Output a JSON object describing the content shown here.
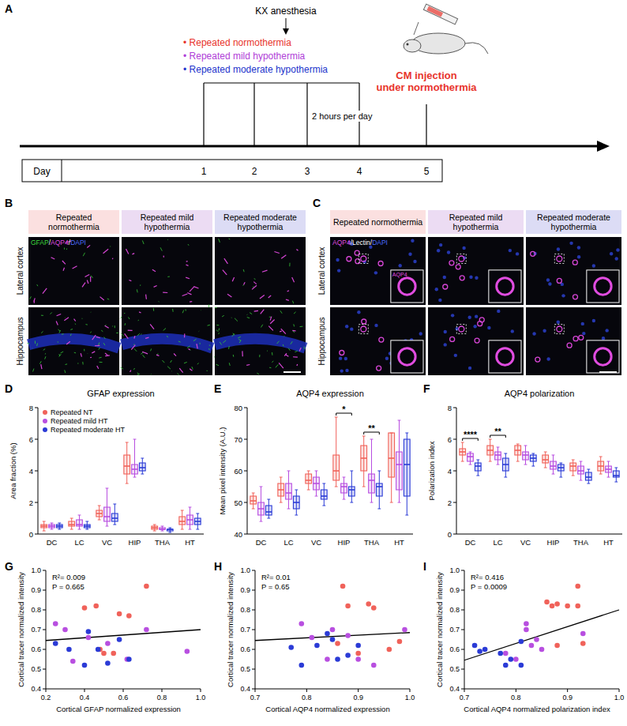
{
  "panel_letters": [
    "A",
    "B",
    "C",
    "D",
    "E",
    "F",
    "G",
    "H",
    "I"
  ],
  "timeline": {
    "event": "KX anesthesia",
    "conditions": [
      {
        "text": "• Repeated normothermia",
        "color": "#e8342c"
      },
      {
        "text": "• Repeated mild hypothermia",
        "color": "#b040d8"
      },
      {
        "text": "• Repeated moderate hypothermia",
        "color": "#2233cc"
      }
    ],
    "duration": "2 hours per day",
    "injection": [
      "CM injection",
      "under normothermia"
    ],
    "injection_color": "#e8342c",
    "day_label": "Day",
    "days": [
      "1",
      "2",
      "3",
      "4",
      "5"
    ]
  },
  "images_b": {
    "columns": [
      {
        "text": "Repeated normothermia",
        "bg": "#fbe0e0"
      },
      {
        "text": "Repeated mild hypothermia",
        "bg": "#ecdcf3"
      },
      {
        "text": "Repeated moderate hypothermia",
        "bg": "#dcdcf5"
      }
    ],
    "rows": [
      "Lateral cortex",
      "Hippocampus"
    ],
    "separator": "/",
    "channels": [
      {
        "text": "GFAP",
        "color": "#3ddc3d"
      },
      {
        "text": "AQP4",
        "color": "#e04ce0"
      },
      {
        "text": "DAPI",
        "color": "#4a6cff"
      }
    ]
  },
  "images_c": {
    "columns": [
      {
        "text": "Repeated normothermia",
        "bg": "#fbe0e0"
      },
      {
        "text": "Repeated mild hypothermia",
        "bg": "#ecdcf3"
      },
      {
        "text": "Repeated moderate hypothermia",
        "bg": "#dcdcf5"
      }
    ],
    "rows": [
      "Lateral cortex",
      "Hippocampus"
    ],
    "separator": "/",
    "channels": [
      {
        "text": "AQP4",
        "color": "#e04ce0"
      },
      {
        "text": "Lectin",
        "color": "#ffffff"
      },
      {
        "text": "DAPI",
        "color": "#4a6cff"
      }
    ],
    "inset_label": {
      "text": "AQP4",
      "color": "#e04ce0"
    }
  },
  "chart_data": [
    {
      "type": "box",
      "title": "GFAP expression",
      "y_label": "Area fraction (%)",
      "categories": [
        "DC",
        "LC",
        "VC",
        "HIP",
        "THA",
        "HT"
      ],
      "ylim": [
        0,
        8
      ],
      "yticks": [
        0,
        2,
        4,
        6,
        8
      ],
      "legend": "top-left",
      "series": [
        {
          "name": "Repeated NT",
          "color": "#f0625a",
          "min": [
            0.2,
            0.3,
            0.9,
            3.2,
            0.2,
            0.3
          ],
          "q1": [
            0.4,
            0.5,
            1.1,
            3.8,
            0.3,
            0.6
          ],
          "median": [
            0.5,
            0.6,
            1.3,
            4.3,
            0.4,
            0.8
          ],
          "q3": [
            0.6,
            0.8,
            1.5,
            5.0,
            0.5,
            1.1
          ],
          "max": [
            0.8,
            1.0,
            1.8,
            5.8,
            0.6,
            1.5
          ]
        },
        {
          "name": "Repeated mild HT",
          "color": "#b84fe0",
          "min": [
            0.3,
            0.3,
            0.5,
            3.6,
            0.2,
            0.3
          ],
          "q1": [
            0.4,
            0.5,
            0.8,
            3.8,
            0.3,
            0.6
          ],
          "median": [
            0.5,
            0.6,
            1.1,
            4.1,
            0.3,
            0.9
          ],
          "q3": [
            0.6,
            0.9,
            1.7,
            4.4,
            0.4,
            1.2
          ],
          "max": [
            0.7,
            1.2,
            2.9,
            6.0,
            0.5,
            1.7
          ]
        },
        {
          "name": "Repeated moderate HT",
          "color": "#2b3bd6",
          "min": [
            0.3,
            0.3,
            0.6,
            3.8,
            0.1,
            0.3
          ],
          "q1": [
            0.4,
            0.4,
            0.8,
            4.0,
            0.2,
            0.6
          ],
          "median": [
            0.5,
            0.5,
            1.0,
            4.2,
            0.3,
            0.8
          ],
          "q3": [
            0.6,
            0.6,
            1.3,
            4.5,
            0.3,
            1.0
          ],
          "max": [
            0.7,
            0.8,
            1.9,
            4.8,
            0.4,
            1.3
          ]
        }
      ]
    },
    {
      "type": "box",
      "title": "AQP4 expression",
      "y_label": "Mean pixel intensity (A.U.)",
      "categories": [
        "DC",
        "LC",
        "VC",
        "HIP",
        "THA",
        "HT"
      ],
      "ylim": [
        40,
        80
      ],
      "yticks": [
        40,
        50,
        60,
        70,
        80
      ],
      "significance": [
        {
          "index": 3,
          "text": "*"
        },
        {
          "index": 4,
          "text": "**"
        }
      ],
      "series": [
        {
          "color": "#f0625a",
          "min": [
            48,
            50,
            54,
            55,
            55,
            50
          ],
          "q1": [
            49.5,
            52,
            56,
            57,
            60,
            58
          ],
          "median": [
            50.5,
            54,
            57,
            60,
            64,
            64
          ],
          "q3": [
            52,
            56,
            59,
            65,
            68,
            72
          ],
          "max": [
            53,
            58,
            60,
            77,
            71,
            72
          ]
        },
        {
          "color": "#b84fe0",
          "min": [
            44,
            48,
            52,
            51,
            50,
            50
          ],
          "q1": [
            46,
            51,
            54,
            53,
            53,
            54
          ],
          "median": [
            48,
            53,
            56,
            55,
            57,
            62
          ],
          "q3": [
            50,
            56,
            58,
            56,
            59,
            66
          ],
          "max": [
            55,
            60,
            60,
            58,
            70,
            76
          ]
        },
        {
          "color": "#2b3bd6",
          "min": [
            45,
            46,
            49,
            50,
            48,
            46
          ],
          "q1": [
            46,
            48,
            51,
            52,
            52,
            52
          ],
          "median": [
            47,
            50,
            52,
            54,
            55,
            62
          ],
          "q3": [
            49,
            52,
            54,
            55,
            56,
            70
          ],
          "max": [
            51,
            54,
            56,
            60,
            60,
            72
          ]
        }
      ]
    },
    {
      "type": "box",
      "title": "AQP4 polarization",
      "y_label": "Polarization index",
      "categories": [
        "DC",
        "LC",
        "VC",
        "HIP",
        "THA",
        "HT"
      ],
      "ylim": [
        0,
        8
      ],
      "yticks": [
        0,
        2,
        4,
        6,
        8
      ],
      "significance": [
        {
          "index": 0,
          "text": "****"
        },
        {
          "index": 1,
          "text": "**"
        }
      ],
      "series": [
        {
          "color": "#f0625a",
          "min": [
            4.6,
            4.6,
            4.6,
            4.2,
            3.7,
            3.8
          ],
          "q1": [
            5.0,
            5.0,
            5.0,
            4.5,
            4.0,
            4.0
          ],
          "median": [
            5.2,
            5.3,
            5.3,
            4.7,
            4.3,
            4.3
          ],
          "q3": [
            5.4,
            5.6,
            5.6,
            5.0,
            4.5,
            4.6
          ],
          "max": [
            5.8,
            6.0,
            5.7,
            5.2,
            4.7,
            4.9
          ]
        },
        {
          "color": "#b84fe0",
          "min": [
            4.4,
            4.4,
            4.4,
            3.8,
            3.4,
            3.6
          ],
          "q1": [
            4.6,
            4.7,
            4.7,
            4.1,
            3.8,
            3.9
          ],
          "median": [
            4.9,
            5.0,
            5.0,
            4.3,
            4.0,
            4.1
          ],
          "q3": [
            5.1,
            5.2,
            5.2,
            4.6,
            4.3,
            4.3
          ],
          "max": [
            5.2,
            5.5,
            5.6,
            5.0,
            4.6,
            4.6
          ]
        },
        {
          "color": "#2b3bd6",
          "min": [
            3.7,
            3.6,
            4.3,
            3.6,
            3.2,
            3.3
          ],
          "q1": [
            4.0,
            4.0,
            4.6,
            4.0,
            3.4,
            3.6
          ],
          "median": [
            4.3,
            4.4,
            4.8,
            4.2,
            3.6,
            3.7
          ],
          "q3": [
            4.5,
            4.8,
            5.0,
            4.4,
            3.9,
            4.0
          ],
          "max": [
            4.7,
            5.1,
            5.1,
            4.5,
            4.1,
            4.2
          ]
        }
      ]
    },
    {
      "type": "scatter",
      "x_label": "Cortical GFAP normalized expression",
      "y_label": "Cortical tracer normalized intensity",
      "xlim": [
        0.2,
        1.0
      ],
      "xticks": [
        0.2,
        0.4,
        0.6,
        0.8,
        {
          "value": 1.0,
          "label": "1.0"
        }
      ],
      "ylim": [
        0.4,
        1.0
      ],
      "yticks": [
        0.4,
        0.5,
        0.6,
        0.7,
        0.8,
        0.9,
        {
          "value": 1.0,
          "label": "1.0"
        }
      ],
      "annotations": [
        "R²= 0.009",
        "P = 0.665"
      ],
      "trend": {
        "x": [
          0.2,
          1.0
        ],
        "y": [
          0.645,
          0.7
        ]
      },
      "series": [
        {
          "color": "#f0625a",
          "x": [
            0.4,
            0.46,
            0.55,
            0.58,
            0.63,
            0.72,
            0.5,
            0.48
          ],
          "y": [
            0.81,
            0.82,
            0.58,
            0.78,
            0.77,
            0.92,
            0.58,
            0.6
          ]
        },
        {
          "color": "#b84fe0",
          "x": [
            0.25,
            0.3,
            0.34,
            0.42,
            0.52,
            0.72,
            0.93,
            0.62
          ],
          "y": [
            0.73,
            0.7,
            0.54,
            0.66,
            0.63,
            0.7,
            0.59,
            0.55
          ]
        },
        {
          "color": "#2b3bd6",
          "x": [
            0.25,
            0.32,
            0.4,
            0.42,
            0.52,
            0.58,
            0.63,
            0.47
          ],
          "y": [
            0.63,
            0.6,
            0.52,
            0.69,
            0.53,
            0.65,
            0.55,
            0.6
          ]
        }
      ]
    },
    {
      "type": "scatter",
      "x_label": "Cortical AQP4 normalized expression",
      "y_label": "Cortical tracer normalized intensity",
      "xlim": [
        0.7,
        1.0
      ],
      "xticks": [
        0.7,
        0.8,
        0.9,
        {
          "value": 1.0,
          "label": "1.0"
        }
      ],
      "ylim": [
        0.4,
        1.0
      ],
      "yticks": [
        0.4,
        0.5,
        0.6,
        0.7,
        0.8,
        0.9,
        {
          "value": 1.0,
          "label": "1.0"
        }
      ],
      "annotations": [
        "R²= 0.01",
        "P = 0.65"
      ],
      "trend": {
        "x": [
          0.7,
          1.0
        ],
        "y": [
          0.645,
          0.685
        ]
      },
      "series": [
        {
          "color": "#f0625a",
          "x": [
            0.87,
            0.88,
            0.92,
            0.93,
            0.9,
            0.86,
            0.98,
            0.96
          ],
          "y": [
            0.92,
            0.82,
            0.83,
            0.81,
            0.58,
            0.63,
            0.64,
            0.6
          ]
        },
        {
          "color": "#b84fe0",
          "x": [
            0.79,
            0.81,
            0.84,
            0.85,
            0.88,
            0.9,
            0.93,
            0.99
          ],
          "y": [
            0.73,
            0.66,
            0.55,
            0.7,
            0.67,
            0.55,
            0.52,
            0.7
          ]
        },
        {
          "color": "#2b3bd6",
          "x": [
            0.77,
            0.79,
            0.82,
            0.84,
            0.86,
            0.9,
            0.88,
            0.85
          ],
          "y": [
            0.61,
            0.52,
            0.62,
            0.68,
            0.55,
            0.62,
            0.57,
            0.65
          ]
        }
      ]
    },
    {
      "type": "scatter",
      "x_label": "Cortical AQP4 normalized polarization index",
      "y_label": "Cortical tracer normalized intensity",
      "xlim": [
        0.7,
        1.0
      ],
      "xticks": [
        0.7,
        0.8,
        0.9,
        {
          "value": 1.0,
          "label": "1.0"
        }
      ],
      "ylim": [
        0.4,
        1.0
      ],
      "yticks": [
        0.4,
        0.5,
        0.6,
        0.7,
        0.8,
        0.9,
        {
          "value": 1.0,
          "label": "1.0"
        }
      ],
      "annotations": [
        "R²= 0.416",
        "P = 0.0009"
      ],
      "trend": {
        "x": [
          0.7,
          1.0
        ],
        "y": [
          0.545,
          0.8
        ]
      },
      "series": [
        {
          "color": "#f0625a",
          "x": [
            0.86,
            0.87,
            0.88,
            0.9,
            0.92,
            0.92,
            0.93,
            0.88
          ],
          "y": [
            0.84,
            0.82,
            0.83,
            0.82,
            0.92,
            0.82,
            0.63,
            0.62
          ]
        },
        {
          "color": "#b84fe0",
          "x": [
            0.78,
            0.8,
            0.82,
            0.83,
            0.84,
            0.85,
            0.82,
            0.93
          ],
          "y": [
            0.58,
            0.55,
            0.73,
            0.62,
            0.65,
            0.6,
            0.7,
            0.68
          ]
        },
        {
          "color": "#2b3bd6",
          "x": [
            0.72,
            0.73,
            0.74,
            0.77,
            0.78,
            0.79,
            0.81,
            0.81
          ],
          "y": [
            0.62,
            0.59,
            0.6,
            0.58,
            0.52,
            0.55,
            0.64,
            0.52
          ]
        }
      ]
    }
  ]
}
